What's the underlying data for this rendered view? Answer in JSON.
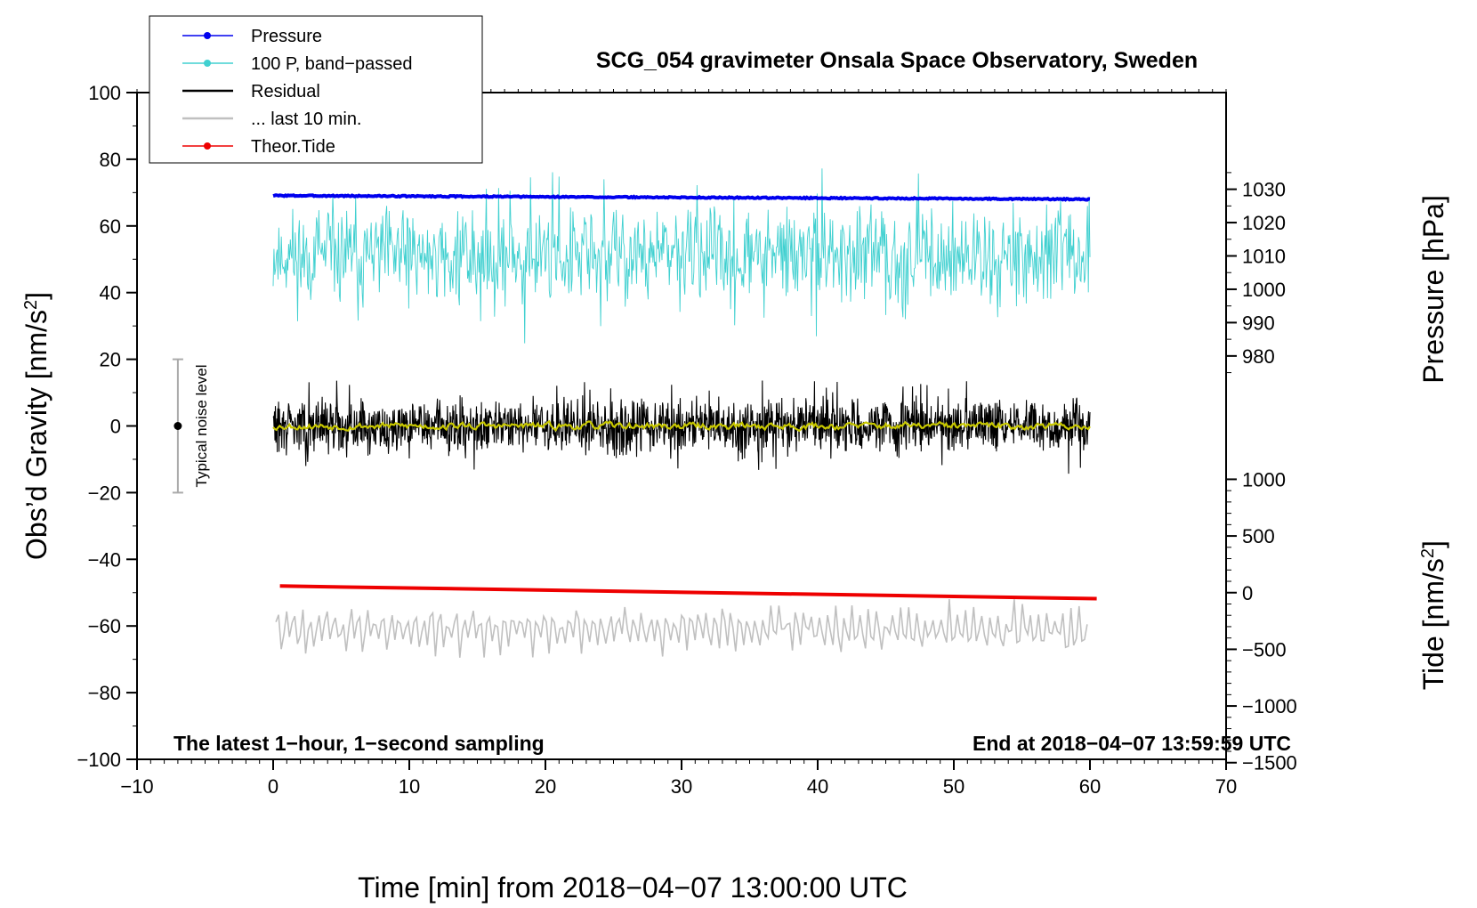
{
  "chart_data": {
    "type": "line",
    "title": "SCG_054 gravimeter Onsala Space Observatory, Sweden",
    "xlabel": "Time [min] from 2018−04−07 13:00:00 UTC",
    "ylabel": "Obs’d Gravity [nm/s",
    "ylabel_sup": "2",
    "ylabel_close": "]",
    "y2label_pressure": "Pressure [hPa]",
    "y2label_tide": "Tide [nm/s",
    "y2label_tide_sup": "2",
    "y2label_tide_close": "]",
    "xlim": [
      -10,
      70
    ],
    "ylim": [
      -100,
      100
    ],
    "x_ticks": [
      {
        "value": -10,
        "label": "−10"
      },
      {
        "value": 0,
        "label": "0"
      },
      {
        "value": 10,
        "label": "10"
      },
      {
        "value": 20,
        "label": "20"
      },
      {
        "value": 30,
        "label": "30"
      },
      {
        "value": 40,
        "label": "40"
      },
      {
        "value": 50,
        "label": "50"
      },
      {
        "value": 60,
        "label": "60"
      },
      {
        "value": 70,
        "label": "70"
      }
    ],
    "y_ticks": [
      {
        "value": 100,
        "label": "100"
      },
      {
        "value": 80,
        "label": "80"
      },
      {
        "value": 60,
        "label": "60"
      },
      {
        "value": 40,
        "label": "40"
      },
      {
        "value": 20,
        "label": "20"
      },
      {
        "value": 0,
        "label": "0"
      },
      {
        "value": -20,
        "label": "−20"
      },
      {
        "value": -40,
        "label": "−40"
      },
      {
        "value": -60,
        "label": "−60"
      },
      {
        "value": -80,
        "label": "−80"
      },
      {
        "value": -100,
        "label": "−100"
      }
    ],
    "pressure_axis": {
      "scale_gravity_per_hPa": 1.0,
      "offset_hPa": 1000,
      "offset_gravity": 41,
      "ticks": [
        {
          "value": 1030,
          "label": "1030"
        },
        {
          "value": 1020,
          "label": "1020"
        },
        {
          "value": 1010,
          "label": "1010"
        },
        {
          "value": 1000,
          "label": "1000"
        },
        {
          "value": 990,
          "label": "990"
        },
        {
          "value": 980,
          "label": "980"
        }
      ]
    },
    "tide_axis": {
      "gravity_at_zero": -50,
      "gravity_per_500": 17,
      "ticks": [
        {
          "value": 1000,
          "label": "1000"
        },
        {
          "value": 500,
          "label": "500"
        },
        {
          "value": 0,
          "label": "0"
        },
        {
          "value": -500,
          "label": "−500"
        },
        {
          "value": -1000,
          "label": "−1000"
        },
        {
          "value": -1500,
          "label": "−1500"
        }
      ]
    },
    "series": [
      {
        "name": "Pressure",
        "color": "#0000ee",
        "kind": "pressure",
        "x_range": [
          0,
          60
        ],
        "y_start": 69.1,
        "y_end": 68.0,
        "noise": 0.35,
        "seed": 3
      },
      {
        "name": "100 P, band−passed",
        "color": "#40d0d0",
        "kind": "bandpassed",
        "x_range": [
          0,
          60
        ],
        "center": 51,
        "amplitude": 11,
        "min": 15,
        "max": 80,
        "seed": 11
      },
      {
        "name": "Residual",
        "color": "#000000",
        "kind": "residual",
        "x_range": [
          0,
          60
        ],
        "center": 0,
        "amplitude": 6,
        "min": -18,
        "max": 18,
        "seed": 29
      },
      {
        "name": "... last 10 min.",
        "color": "#c0c0c0",
        "kind": "last10",
        "x_range": [
          0.2,
          59.8
        ],
        "center": -61,
        "amplitude": 5.5,
        "min": -78,
        "max": -47,
        "seed": 41
      },
      {
        "name": "Theor.Tide",
        "color": "#ee0000",
        "kind": "tide",
        "x_range": [
          0.5,
          60.5
        ],
        "y_start": -48.0,
        "y_end": -51.8
      },
      {
        "name": "smoothed residual",
        "color": "#c8c800",
        "kind": "smoothed",
        "x_range": [
          0,
          60
        ],
        "center": 0,
        "amplitude": 1.0,
        "seed": 53
      }
    ],
    "noise_bar": {
      "label": "Typical noise level",
      "x": -7,
      "y": 0,
      "ymin": -20,
      "ymax": 20
    },
    "annotations": {
      "left": "The latest 1−hour, 1−second sampling",
      "right": "End at 2018−04−07 13:59:59 UTC"
    },
    "legend": [
      {
        "label": "Pressure",
        "color": "#0000ee",
        "marker": true
      },
      {
        "label": "100 P, band−passed",
        "color": "#40d0d0",
        "marker": true
      },
      {
        "label": "Residual",
        "color": "#000000",
        "marker": false
      },
      {
        "label": "... last 10 min.",
        "color": "#c0c0c0",
        "marker": false
      },
      {
        "label": "Theor.Tide",
        "color": "#ee0000",
        "marker": true
      }
    ]
  }
}
